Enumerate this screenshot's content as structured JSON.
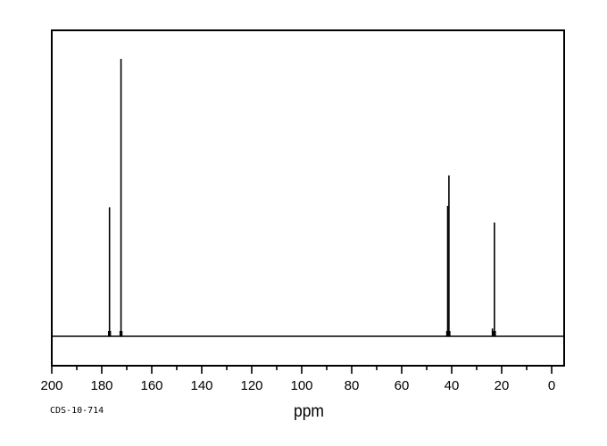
{
  "chart_data": {
    "type": "line",
    "subtype": "nmr-spectrum-13C",
    "title": "",
    "xlabel": "ppm",
    "ylabel": "",
    "annotation": "CDS-10-714",
    "x_axis": {
      "max": 200,
      "min": -5,
      "reversed": true,
      "major_ticks": [
        200,
        180,
        160,
        140,
        120,
        100,
        80,
        60,
        40,
        20,
        0
      ],
      "minor_ticks": [
        190,
        170,
        150,
        130,
        110,
        90,
        70,
        50,
        30,
        10
      ],
      "grid": false
    },
    "y_axis": {
      "shown": false
    },
    "peaks": [
      {
        "ppm": 176.9,
        "intensity": 0.465
      },
      {
        "ppm": 172.3,
        "intensity": 1.0
      },
      {
        "ppm": 41.6,
        "intensity": 0.47
      },
      {
        "ppm": 41.1,
        "intensity": 0.58
      },
      {
        "ppm": 23.7,
        "intensity": 0.028
      },
      {
        "ppm": 22.9,
        "intensity": 0.41
      }
    ],
    "colors": {
      "line": "#000000",
      "background": "#ffffff"
    }
  }
}
